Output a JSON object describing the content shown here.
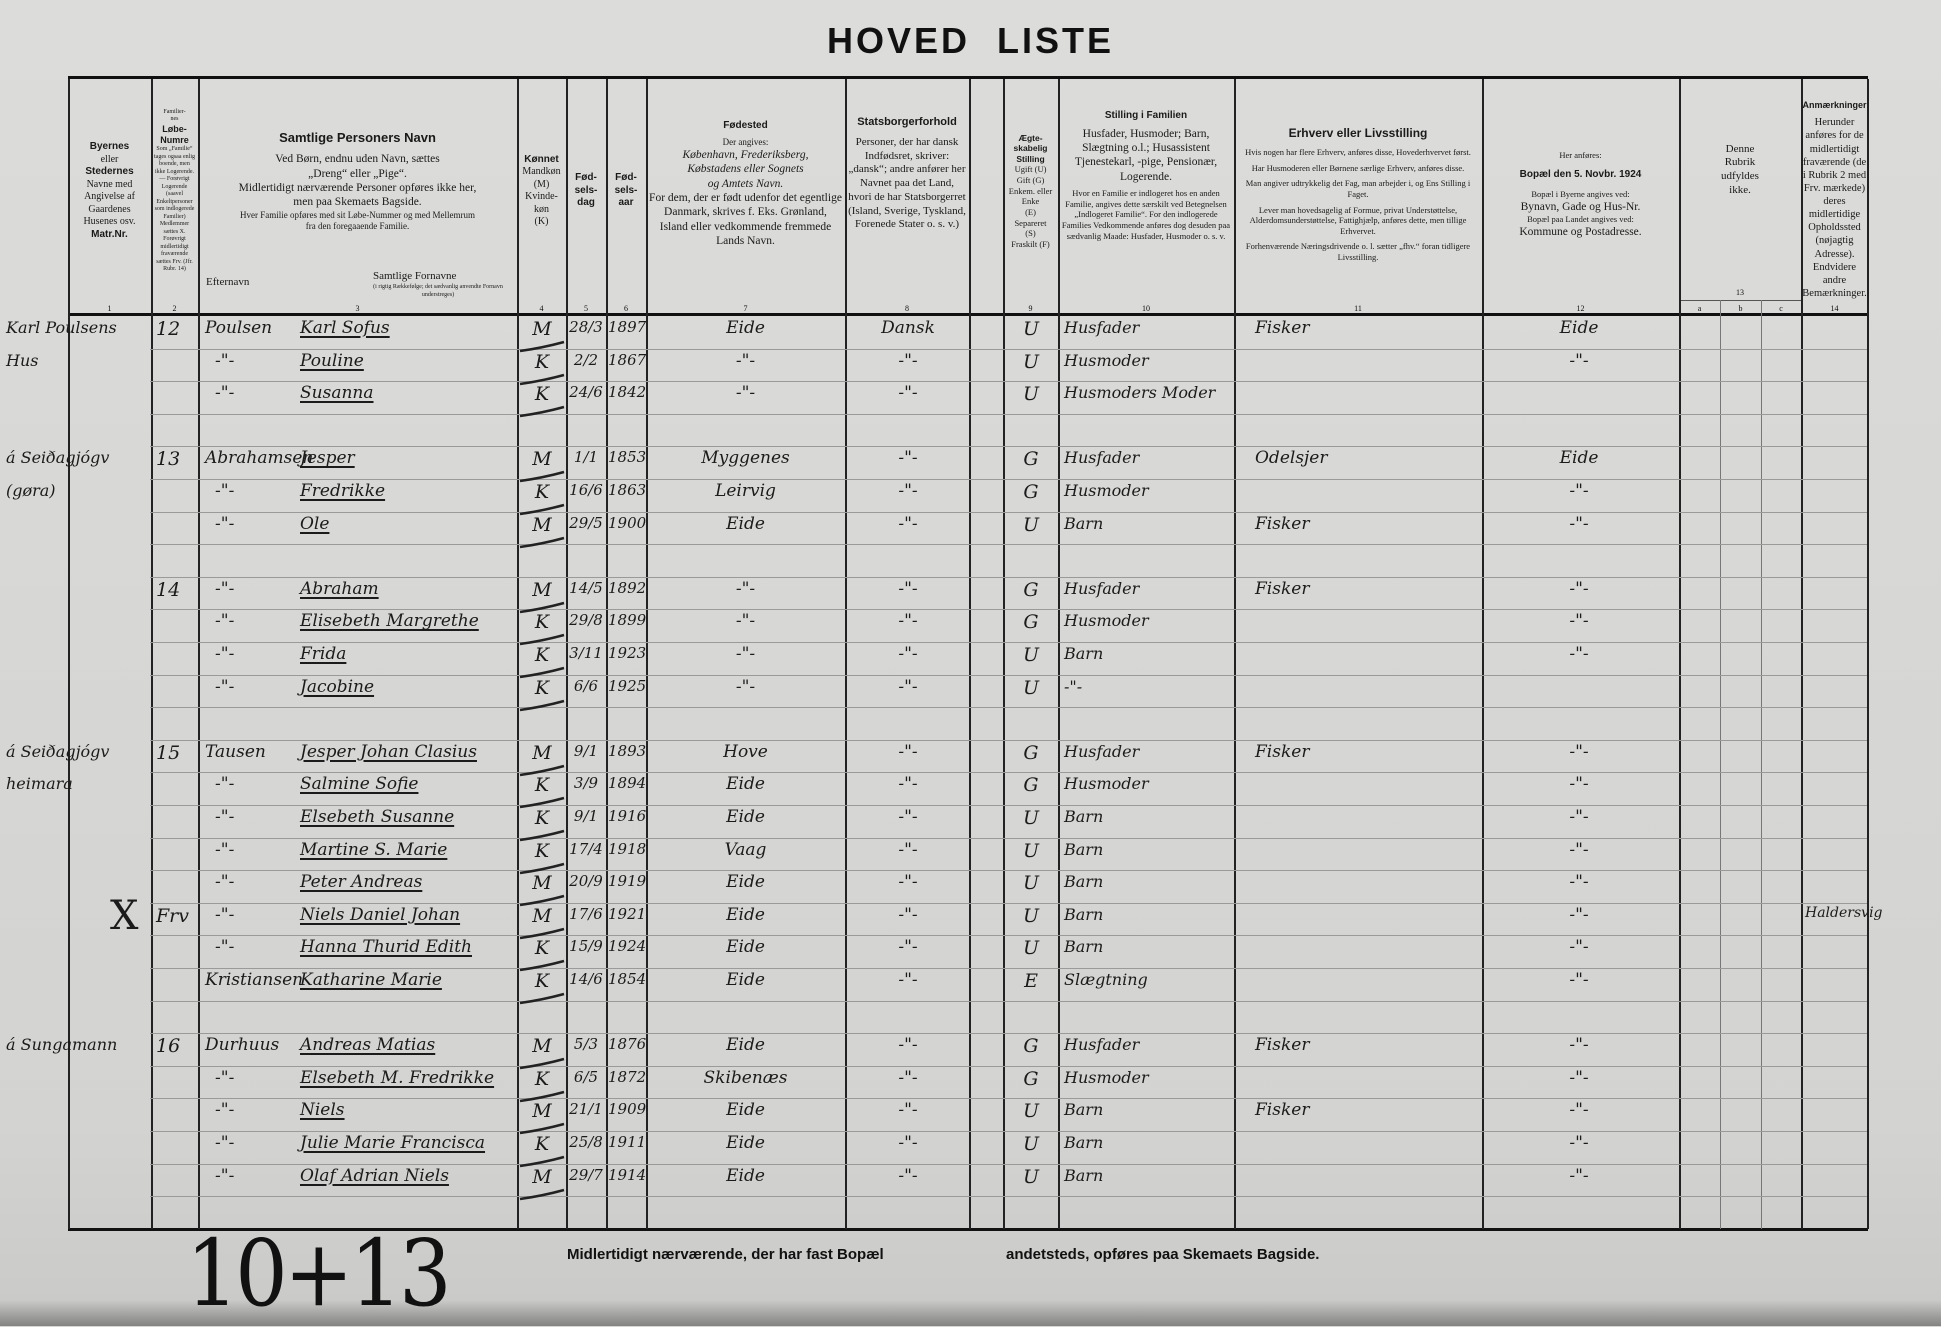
{
  "title": "HOVED LISTE",
  "headers": {
    "c1": {
      "lines": [
        "Byernes",
        "eller",
        "Stedernes",
        "Navne med",
        "Angivelse af",
        "Gaardenes",
        "Husenes osv.",
        "Matr.Nr."
      ],
      "num": "1"
    },
    "c2": {
      "lines": [
        "Familier-",
        "nes",
        "Løbe-",
        "Numre",
        "Som „Familie“ tages ogsaa enlig boende, men ikke Logerende. — Forøvrigt Logerende (saavel Enkeltpersoner som indlogerede Familier) Medlemmer sættes X. Forøvrigt midlertidigt fraværende sættes Frv. (Jfr. Rubr. 14)"
      ],
      "num": "2"
    },
    "c3": {
      "title": "Samtlige Personers Navn",
      "l1": "Ved Børn, endnu uden Navn, sættes",
      "l2": "„Dreng“ eller „Pige“.",
      "l3": "Midlertidigt nærværende Personer opføres ikke her,",
      "l4": "men paa Skemaets Bagside.",
      "l5": "Hver Familie opføres med sit Løbe-Nummer og med Mellemrum",
      "l6": "fra den foregaaende Familie.",
      "surname": "Efternavn",
      "given": "Samtlige Fornavne",
      "given_note": "(i rigtig Rækkefølge; det sædvanlig anvendte Fornavn understreges)",
      "num": "3"
    },
    "c4": {
      "title": "Kønnet",
      "lines": [
        "Mandkøn",
        "(M)",
        "Kvinde-",
        "køn",
        "(K)"
      ],
      "num": "4"
    },
    "c5": {
      "lines": [
        "Fød-",
        "sels-",
        "dag"
      ],
      "num": "5"
    },
    "c6": {
      "lines": [
        "Fød-",
        "sels-",
        "aar"
      ],
      "num": "6"
    },
    "c7": {
      "title": "Fødested",
      "l1": "Der angives:",
      "l2": "København, Frederiksberg,",
      "l3": "Købstadens eller Sognets",
      "l4": "og Amtets Navn.",
      "l5": "For dem, der er født udenfor det egentlige Danmark, skrives f. Eks. Grønland, Island eller vedkommende fremmede Lands Navn.",
      "num": "7"
    },
    "c8": {
      "title": "Statsborgerforhold",
      "text": "Personer, der har dansk Indfødsret, skriver: „dansk“; andre anfører her Navnet paa det Land, hvori de har Statsborgerret (Island, Sverige, Tyskland, Forenede Stater o. s. v.)",
      "num": "8"
    },
    "c9": {
      "title": "Ægte-skabelig Stilling",
      "lines": [
        "Ugift (U)",
        "Gift (G)",
        "Enkem. eller Enke",
        "(E)",
        "Separeret",
        "(S)",
        "Fraskilt (F)"
      ],
      "num": "9"
    },
    "c10": {
      "title": "Stilling i Familien",
      "text": "Husfader, Husmoder; Barn, Slægtning o.l.; Husassistent Tjenestekarl, -pige, Pensionær, Logerende.",
      "note": "Hvor en Familie er indlogeret hos en anden Familie, angives dette særskilt ved Betegnelsen „Indlogeret Familie“. For den indlogerede Families Vedkommende anføres dog desuden paa sædvanlig Maade: Husfader, Husmoder o. s. v.",
      "num": "10"
    },
    "c11": {
      "title": "Erhverv eller Livsstilling",
      "p1": "Hvis nogen har flere Erhverv, anføres disse, Hovederhvervet først.",
      "p2": "Har Husmoderen eller Børnene særlige Erhverv, anføres disse.",
      "p3": "Man angiver udtrykkelig det Fag, man arbejder i, og Ens Stilling i Faget.",
      "p4": "Lever man hovedsagelig af Formue, privat Understøttelse, Alderdomsunderstøttelse, Fattighjælp, anføres dette, men tillige Erhvervet.",
      "p5": "Forhenværende Næringsdrivende o. l. sætter „fhv.“ foran tidligere Livsstilling.",
      "num": "11"
    },
    "c12": {
      "l1": "Her anføres:",
      "title": "Bopæl den 5. Novbr. 1924",
      "l2": "Bopæl i Byerne angives ved:",
      "l3": "Bynavn, Gade og Hus-Nr.",
      "l4": "Bopæl paa Landet angives ved:",
      "l5": "Kommune og Postadresse.",
      "num": "12"
    },
    "c13": {
      "lines": [
        "Denne",
        "Rubrik",
        "udfyldes",
        "ikke."
      ],
      "num": "13",
      "sub": [
        "a",
        "b",
        "c"
      ]
    },
    "c14": {
      "title": "Anmærkninger",
      "text": "Herunder anføres for de midlertidigt fraværende (de i Rubrik 2 med Frv. mærkede) deres midlertidige Opholdssted (nøjagtig Adresse). Endvidere andre Bemærkninger.",
      "num": "14"
    }
  },
  "rows": [
    {
      "place": "Karl Poulsens",
      "fam": "12",
      "sur": "Poulsen",
      "given": "Karl Sofus",
      "sex": "M",
      "day": "28/3",
      "year": "1897",
      "bp": "Eide",
      "nat": "Dansk",
      "mar": "U",
      "pos": "Husfader",
      "occ": "Fisker",
      "res": "Eide",
      "rem": ""
    },
    {
      "place": "Hus",
      "fam": "",
      "sur": "-\"-",
      "given": "Pouline",
      "sex": "K",
      "day": "2/2",
      "year": "1867",
      "bp": "-\"-",
      "nat": "-\"-",
      "mar": "U",
      "pos": "Husmoder",
      "occ": "",
      "res": "-\"-",
      "rem": ""
    },
    {
      "place": "",
      "fam": "",
      "sur": "-\"-",
      "given": "Susanna",
      "sex": "K",
      "day": "24/6",
      "year": "1842",
      "bp": "-\"-",
      "nat": "-\"-",
      "mar": "U",
      "pos": "Husmoders Moder",
      "occ": "",
      "res": "",
      "rem": ""
    },
    {},
    {
      "place": "á Seiðagjógv",
      "fam": "13",
      "sur": "Abrahamsen",
      "given": "Jesper",
      "sex": "M",
      "day": "1/1",
      "year": "1853",
      "bp": "Myggenes",
      "nat": "-\"-",
      "mar": "G",
      "pos": "Husfader",
      "occ": "Odelsjer",
      "res": "Eide",
      "rem": ""
    },
    {
      "place": "(gøra)",
      "fam": "",
      "sur": "-\"-",
      "given": "Fredrikke",
      "sex": "K",
      "day": "16/6",
      "year": "1863",
      "bp": "Leirvig",
      "nat": "-\"-",
      "mar": "G",
      "pos": "Husmoder",
      "occ": "",
      "res": "-\"-",
      "rem": ""
    },
    {
      "place": "",
      "fam": "",
      "sur": "-\"-",
      "given": "Ole",
      "sex": "M",
      "day": "29/5",
      "year": "1900",
      "bp": "Eide",
      "nat": "-\"-",
      "mar": "U",
      "pos": "Barn",
      "occ": "Fisker",
      "res": "-\"-",
      "rem": ""
    },
    {},
    {
      "place": "",
      "fam": "14",
      "sur": "-\"-",
      "given": "Abraham",
      "sex": "M",
      "day": "14/5",
      "year": "1892",
      "bp": "-\"-",
      "nat": "-\"-",
      "mar": "G",
      "pos": "Husfader",
      "occ": "Fisker",
      "res": "-\"-",
      "rem": ""
    },
    {
      "place": "",
      "fam": "",
      "sur": "-\"-",
      "given": "Elisebeth Margrethe",
      "sex": "K",
      "day": "29/8",
      "year": "1899",
      "bp": "-\"-",
      "nat": "-\"-",
      "mar": "G",
      "pos": "Husmoder",
      "occ": "",
      "res": "-\"-",
      "rem": ""
    },
    {
      "place": "",
      "fam": "",
      "sur": "-\"-",
      "given": "Frida",
      "sex": "K",
      "day": "3/11",
      "year": "1923",
      "bp": "-\"-",
      "nat": "-\"-",
      "mar": "U",
      "pos": "Barn",
      "occ": "",
      "res": "-\"-",
      "rem": ""
    },
    {
      "place": "",
      "fam": "",
      "sur": "-\"-",
      "given": "Jacobine",
      "sex": "K",
      "day": "6/6",
      "year": "1925",
      "bp": "-\"-",
      "nat": "-\"-",
      "mar": "U",
      "pos": "-\"-",
      "occ": "",
      "res": "",
      "rem": ""
    },
    {},
    {
      "place": "á Seiðagjógv",
      "fam": "15",
      "sur": "Tausen",
      "given": "Jesper Johan Clasius",
      "sex": "M",
      "day": "9/1",
      "year": "1893",
      "bp": "Hove",
      "nat": "-\"-",
      "mar": "G",
      "pos": "Husfader",
      "occ": "Fisker",
      "res": "-\"-",
      "rem": ""
    },
    {
      "place": "heimara",
      "fam": "",
      "sur": "-\"-",
      "given": "Salmine Sofie",
      "sex": "K",
      "day": "3/9",
      "year": "1894",
      "bp": "Eide",
      "nat": "-\"-",
      "mar": "G",
      "pos": "Husmoder",
      "occ": "",
      "res": "-\"-",
      "rem": ""
    },
    {
      "place": "",
      "fam": "",
      "sur": "-\"-",
      "given": "Elsebeth Susanne",
      "sex": "K",
      "day": "9/1",
      "year": "1916",
      "bp": "Eide",
      "nat": "-\"-",
      "mar": "U",
      "pos": "Barn",
      "occ": "",
      "res": "-\"-",
      "rem": ""
    },
    {
      "place": "",
      "fam": "",
      "sur": "-\"-",
      "given": "Martine S. Marie",
      "sex": "K",
      "day": "17/4",
      "year": "1918",
      "bp": "Vaag",
      "nat": "-\"-",
      "mar": "U",
      "pos": "Barn",
      "occ": "",
      "res": "-\"-",
      "rem": ""
    },
    {
      "place": "",
      "fam": "",
      "sur": "-\"-",
      "given": "Peter Andreas",
      "sex": "M",
      "day": "20/9",
      "year": "1919",
      "bp": "Eide",
      "nat": "-\"-",
      "mar": "U",
      "pos": "Barn",
      "occ": "",
      "res": "-\"-",
      "rem": ""
    },
    {
      "place": "X",
      "fam": "Frv",
      "sur": "-\"-",
      "given": "Niels Daniel Johan",
      "sex": "M",
      "day": "17/6",
      "year": "1921",
      "bp": "Eide",
      "nat": "-\"-",
      "mar": "U",
      "pos": "Barn",
      "occ": "",
      "res": "-\"-",
      "rem": "Haldersvig"
    },
    {
      "place": "",
      "fam": "",
      "sur": "-\"-",
      "given": "Hanna Thurid Edith",
      "sex": "K",
      "day": "15/9",
      "year": "1924",
      "bp": "Eide",
      "nat": "-\"-",
      "mar": "U",
      "pos": "Barn",
      "occ": "",
      "res": "-\"-",
      "rem": ""
    },
    {
      "place": "",
      "fam": "",
      "sur": "Kristiansen",
      "given": "Katharine Marie",
      "sex": "K",
      "day": "14/6",
      "year": "1854",
      "bp": "Eide",
      "nat": "-\"-",
      "mar": "E",
      "pos": "Slægtning",
      "occ": "",
      "res": "-\"-",
      "rem": ""
    },
    {},
    {
      "place": "á Sungamann",
      "fam": "16",
      "sur": "Durhuus",
      "given": "Andreas Matias",
      "sex": "M",
      "day": "5/3",
      "year": "1876",
      "bp": "Eide",
      "nat": "-\"-",
      "mar": "G",
      "pos": "Husfader",
      "occ": "Fisker",
      "res": "-\"-",
      "rem": ""
    },
    {
      "place": "",
      "fam": "",
      "sur": "-\"-",
      "given": "Elsebeth M. Fredrikke",
      "sex": "K",
      "day": "6/5",
      "year": "1872",
      "bp": "Skibenæs",
      "nat": "-\"-",
      "mar": "G",
      "pos": "Husmoder",
      "occ": "",
      "res": "-\"-",
      "rem": ""
    },
    {
      "place": "",
      "fam": "",
      "sur": "-\"-",
      "given": "Niels",
      "sex": "M",
      "day": "21/1",
      "year": "1909",
      "bp": "Eide",
      "nat": "-\"-",
      "mar": "U",
      "pos": "Barn",
      "occ": "Fisker",
      "res": "-\"-",
      "rem": ""
    },
    {
      "place": "",
      "fam": "",
      "sur": "-\"-",
      "given": "Julie Marie Francisca",
      "sex": "K",
      "day": "25/8",
      "year": "1911",
      "bp": "Eide",
      "nat": "-\"-",
      "mar": "U",
      "pos": "Barn",
      "occ": "",
      "res": "-\"-",
      "rem": ""
    },
    {
      "place": "",
      "fam": "",
      "sur": "-\"-",
      "given": "Olaf Adrian Niels",
      "sex": "M",
      "day": "29/7",
      "year": "1914",
      "bp": "Eide",
      "nat": "-\"-",
      "mar": "U",
      "pos": "Barn",
      "occ": "",
      "res": "-\"-",
      "rem": ""
    },
    {}
  ],
  "footer": {
    "left": "Midlertidigt nærværende, der har fast Bopæl",
    "right": "andetsteds, opføres paa Skemaets Bagside."
  },
  "handwritten_total": "10+13"
}
